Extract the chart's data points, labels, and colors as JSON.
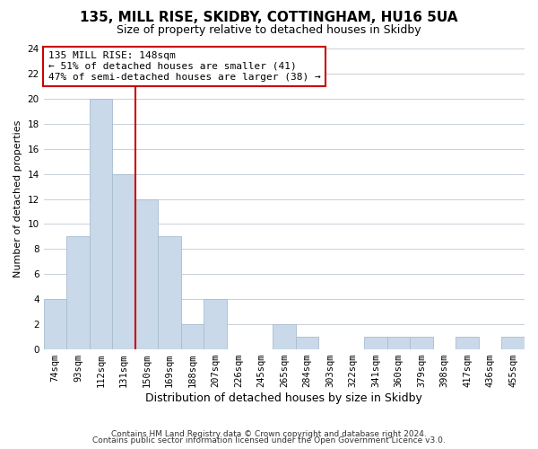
{
  "title1": "135, MILL RISE, SKIDBY, COTTINGHAM, HU16 5UA",
  "title2": "Size of property relative to detached houses in Skidby",
  "xlabel": "Distribution of detached houses by size in Skidby",
  "ylabel": "Number of detached properties",
  "categories": [
    "74sqm",
    "93sqm",
    "112sqm",
    "131sqm",
    "150sqm",
    "169sqm",
    "188sqm",
    "207sqm",
    "226sqm",
    "245sqm",
    "265sqm",
    "284sqm",
    "303sqm",
    "322sqm",
    "341sqm",
    "360sqm",
    "379sqm",
    "398sqm",
    "417sqm",
    "436sqm",
    "455sqm"
  ],
  "values": [
    4,
    9,
    20,
    14,
    12,
    9,
    2,
    4,
    0,
    0,
    2,
    1,
    0,
    0,
    1,
    1,
    1,
    0,
    1,
    0,
    1
  ],
  "bar_color": "#c9d9ea",
  "bar_edge_color": "#a8bdd0",
  "vline_index": 3.5,
  "vline_color": "#cc0000",
  "annotation_box_edge_color": "#cc0000",
  "annotation_line1": "135 MILL RISE: 148sqm",
  "annotation_line2": "← 51% of detached houses are smaller (41)",
  "annotation_line3": "47% of semi-detached houses are larger (38) →",
  "ylim": [
    0,
    24
  ],
  "yticks": [
    0,
    2,
    4,
    6,
    8,
    10,
    12,
    14,
    16,
    18,
    20,
    22,
    24
  ],
  "footer1": "Contains HM Land Registry data © Crown copyright and database right 2024.",
  "footer2": "Contains public sector information licensed under the Open Government Licence v3.0.",
  "bg_color": "#ffffff",
  "grid_color": "#c8d0d8",
  "title1_fontsize": 11,
  "title2_fontsize": 9,
  "xlabel_fontsize": 9,
  "ylabel_fontsize": 8,
  "tick_fontsize": 7.5,
  "footer_fontsize": 6.5
}
